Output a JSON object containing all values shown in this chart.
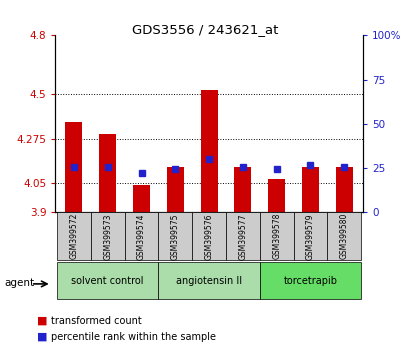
{
  "title": "GDS3556 / 243621_at",
  "samples": [
    "GSM399572",
    "GSM399573",
    "GSM399574",
    "GSM399575",
    "GSM399576",
    "GSM399577",
    "GSM399578",
    "GSM399579",
    "GSM399580"
  ],
  "red_values": [
    4.36,
    4.3,
    4.04,
    4.13,
    4.52,
    4.13,
    4.07,
    4.13,
    4.13
  ],
  "blue_values": [
    4.13,
    4.13,
    4.1,
    4.12,
    4.17,
    4.13,
    4.12,
    4.14,
    4.13
  ],
  "ylim_left": [
    3.9,
    4.8
  ],
  "yticks_left": [
    3.9,
    4.05,
    4.275,
    4.5,
    4.8
  ],
  "ytick_labels_left": [
    "3.9",
    "4.05",
    "4.275",
    "4.5",
    "4.8"
  ],
  "ylim_right": [
    0,
    100
  ],
  "yticks_right": [
    0,
    25,
    50,
    75,
    100
  ],
  "ytick_labels_right": [
    "0",
    "25",
    "50",
    "75",
    "100%"
  ],
  "hlines": [
    4.05,
    4.275,
    4.5
  ],
  "bar_width": 0.5,
  "red_color": "#cc0000",
  "blue_color": "#2222cc",
  "group_colors": [
    "#aaddaa",
    "#aaddaa",
    "#66dd66"
  ],
  "group_labels": [
    "solvent control",
    "angiotensin II",
    "torcetrapib"
  ],
  "agent_label": "agent",
  "legend_red": "transformed count",
  "legend_blue": "percentile rank within the sample",
  "tick_label_color_left": "#cc0000",
  "tick_label_color_right": "#2222cc",
  "plot_bg": "#ffffff",
  "sample_box_bg": "#cccccc",
  "base_value": 3.9
}
